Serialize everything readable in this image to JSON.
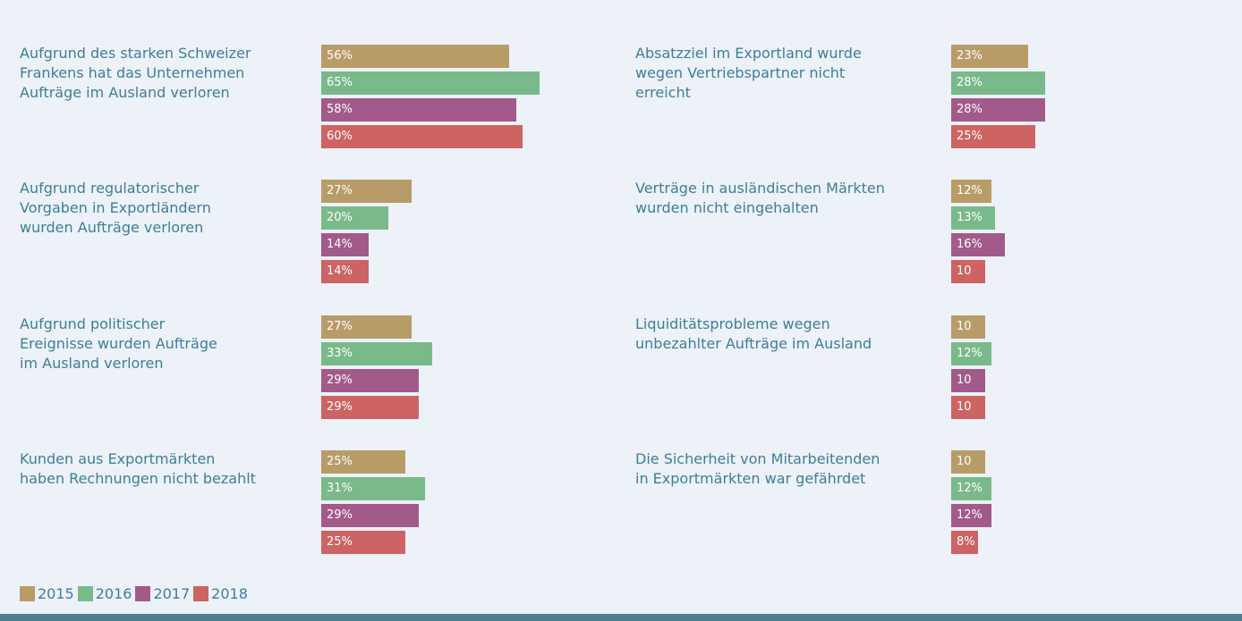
{
  "chart_data": {
    "type": "bar",
    "categories": [
      "Aufgrund des starken Schweizer\nFrankens hat das Unternehmen\nAufträge im Ausland verloren",
      "Aufgrund regulatorischer\nVorgaben in Exportländern\nwurden Aufträge verloren",
      "Aufgrund politischer\nEreignisse wurden Aufträge\nim Ausland verloren",
      "Kunden aus Exportmärkten\nhaben Rechnungen nicht bezahlt",
      "Absatzziel im Exportland wurde\nwegen Vertriebspartner nicht erreicht",
      "Verträge in ausländischen Märkten\nwurden nicht eingehalten",
      "Liquiditätsprobleme wegen\nunbezahlter Aufträge im Ausland",
      "Die Sicherheit von Mitarbeitenden\nin Exportmärkten war gefährdet"
    ],
    "series": [
      {
        "name": "2015",
        "color": "#b89c68",
        "values": [
          56,
          27,
          27,
          25,
          23,
          12,
          10,
          10
        ],
        "value_labels": [
          "56%",
          "27%",
          "27%",
          "25%",
          "23%",
          "12%",
          "10",
          "10"
        ]
      },
      {
        "name": "2016",
        "color": "#7ab98a",
        "values": [
          65,
          20,
          33,
          31,
          28,
          13,
          12,
          12
        ],
        "value_labels": [
          "65%",
          "20%",
          "33%",
          "31%",
          "28%",
          "13%",
          "12%",
          "12%"
        ]
      },
      {
        "name": "2017",
        "color": "#a25a8a",
        "values": [
          58,
          14,
          29,
          29,
          28,
          16,
          10,
          12
        ],
        "value_labels": [
          "58%",
          "14%",
          "29%",
          "29%",
          "28%",
          "16%",
          "10",
          "12%"
        ]
      },
      {
        "name": "2018",
        "color": "#cd6363",
        "values": [
          60,
          14,
          29,
          25,
          25,
          10,
          10,
          8
        ],
        "value_labels": [
          "60%",
          "14%",
          "29%",
          "25%",
          "25%",
          "10",
          "10",
          "8%"
        ]
      }
    ]
  }
}
